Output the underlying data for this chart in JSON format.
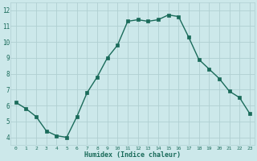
{
  "x": [
    0,
    1,
    2,
    3,
    4,
    5,
    6,
    7,
    8,
    9,
    10,
    11,
    12,
    13,
    14,
    15,
    16,
    17,
    18,
    19,
    20,
    21,
    22,
    23
  ],
  "y": [
    6.2,
    5.8,
    5.3,
    4.4,
    4.1,
    4.0,
    5.3,
    6.8,
    7.8,
    9.0,
    9.8,
    11.3,
    11.4,
    11.3,
    11.4,
    11.7,
    11.6,
    10.3,
    8.9,
    8.3,
    7.7,
    6.9,
    6.5,
    5.5
  ],
  "xlabel": "Humidex (Indice chaleur)",
  "line_color": "#1a6b5a",
  "bg_color": "#cce8ea",
  "grid_color": "#b0cfd2",
  "text_color": "#1a6b5a",
  "xlim": [
    -0.5,
    23.5
  ],
  "ylim": [
    3.5,
    12.5
  ],
  "yticks": [
    4,
    5,
    6,
    7,
    8,
    9,
    10,
    11,
    12
  ],
  "xtick_labels": [
    "0",
    "1",
    "2",
    "3",
    "4",
    "5",
    "6",
    "7",
    "8",
    "9",
    "10",
    "11",
    "12",
    "13",
    "14",
    "15",
    "16",
    "17",
    "18",
    "19",
    "20",
    "21",
    "22",
    "23"
  ]
}
